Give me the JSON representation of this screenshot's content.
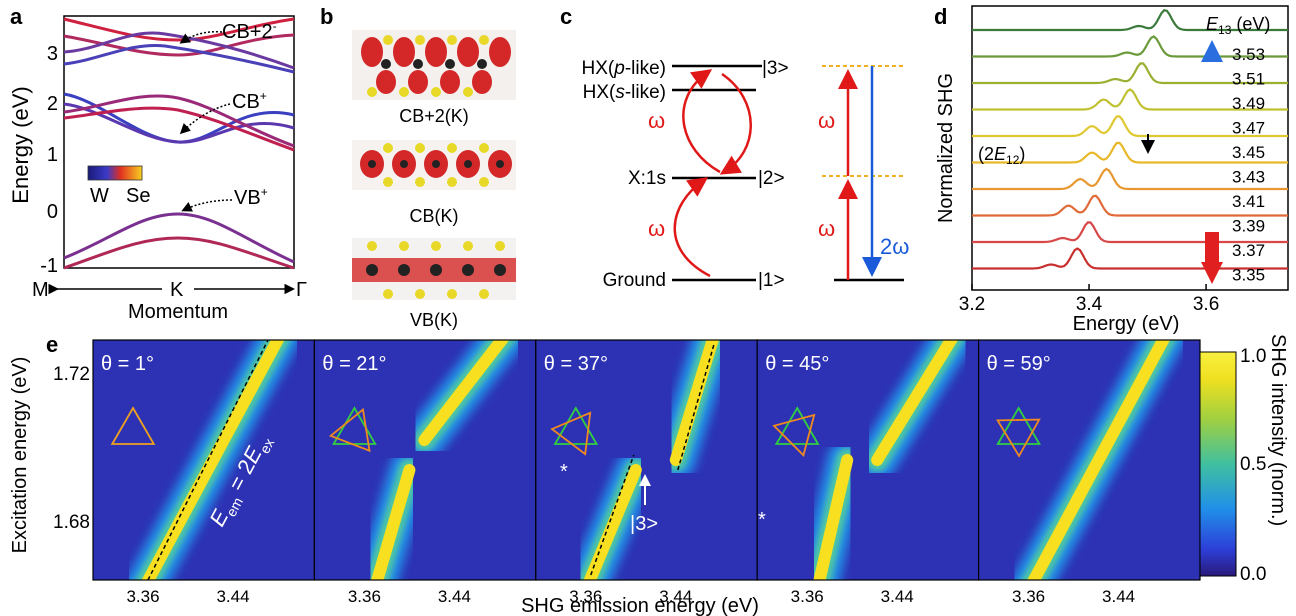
{
  "panel_labels": {
    "a": "a",
    "b": "b",
    "c": "c",
    "d": "d",
    "e": "e"
  },
  "panel_a": {
    "ylabel": "Energy (eV)",
    "yticks": [
      "3",
      "2",
      "1",
      "0",
      "-1"
    ],
    "xlabel": "Momentum",
    "x_points": {
      "M": "M",
      "K": "K",
      "G": "Γ"
    },
    "colorbar_labels": {
      "left": "W",
      "right": "Se"
    },
    "annotations": {
      "cb2": "CB+2",
      "cb2_sup": "-",
      "cb": "CB",
      "cb_sup": "+",
      "vb": "VB",
      "vb_sup": "+"
    }
  },
  "panel_b": {
    "labels": [
      "CB+2(K)",
      "CB(K)",
      "VB(K)"
    ]
  },
  "panel_c": {
    "levels": {
      "hx_p_pre": "HX(",
      "hx_p_it": "p",
      "hx_p_post": "-like)",
      "hx_s_pre": "HX(",
      "hx_s_it": "s",
      "hx_s_post": "-like)",
      "x1s": "X:1s",
      "ground": "Ground",
      "k3": "|3>",
      "k2": "|2>",
      "k1": "|1>"
    },
    "omega": "ω",
    "two_omega": "2ω"
  },
  "panel_d": {
    "ylabel": "Normalized SHG",
    "xlabel": "Energy (eV)",
    "xticks": [
      "3.2",
      "3.4",
      "3.6"
    ],
    "legend_title_main": "E",
    "legend_title_sub": "13",
    "legend_title_unit": " (eV)",
    "e13_values": [
      "3.53",
      "3.51",
      "3.49",
      "3.47",
      "3.45",
      "3.43",
      "3.41",
      "3.39",
      "3.37",
      "3.35"
    ],
    "annot_pre": "(2",
    "annot_E": "E",
    "annot_sub": "12",
    "annot_post": ")"
  },
  "panel_e": {
    "ylabel": "Excitation energy (eV)",
    "xlabel": "SHG emission energy (eV)",
    "yticks": [
      "1.72",
      "1.68"
    ],
    "xticks": [
      "3.36",
      "3.44"
    ],
    "angles": [
      "θ = 1°",
      "θ = 21°",
      "θ = 37°",
      "θ = 45°",
      "θ = 59°"
    ],
    "relation_E": "E",
    "relation_em": "em",
    "relation_eq": " = 2",
    "relation_E2": "E",
    "relation_ex": "ex",
    "star": "*",
    "ket3": "|3>",
    "colorbar_title": "SHG intensity (norm.)",
    "colorbar_ticks": [
      "1.0",
      "0.5",
      "0.0"
    ]
  },
  "chart_data": [
    {
      "type": "line",
      "title": "",
      "xlabel": "Momentum",
      "ylabel": "Energy (eV)",
      "x_ticks": [
        "M",
        "K",
        "Γ"
      ],
      "ylim": [
        -1,
        3.7
      ],
      "bands_at_K_eV": {
        "VB+": 0.0,
        "CB+": 1.4,
        "CB+2": 3.5
      }
    },
    {
      "type": "line",
      "title": "",
      "xlabel": "Energy (eV)",
      "ylabel": "Normalized SHG",
      "xlim": [
        3.2,
        3.74
      ],
      "series_legend": "E13 (eV)",
      "E13_eV": [
        3.53,
        3.51,
        3.49,
        3.47,
        3.45,
        3.43,
        3.41,
        3.39,
        3.37,
        3.35
      ],
      "peak_positions_eV": [
        3.53,
        3.51,
        3.49,
        3.47,
        3.45,
        3.45,
        3.43,
        3.41,
        3.4,
        3.38
      ],
      "annotation": "(2E12) at ~3.45 eV"
    },
    {
      "type": "heatmap",
      "title": "",
      "xlabel": "SHG emission energy (eV)",
      "ylabel": "Excitation energy (eV)",
      "panels": [
        "θ = 1°",
        "θ = 21°",
        "θ = 37°",
        "θ = 45°",
        "θ = 59°"
      ],
      "x_ticks": [
        3.36,
        3.44
      ],
      "y_ticks": [
        1.68,
        1.72
      ],
      "colorbar": {
        "label": "SHG intensity (norm.)",
        "range": [
          0.0,
          1.0
        ]
      }
    }
  ]
}
